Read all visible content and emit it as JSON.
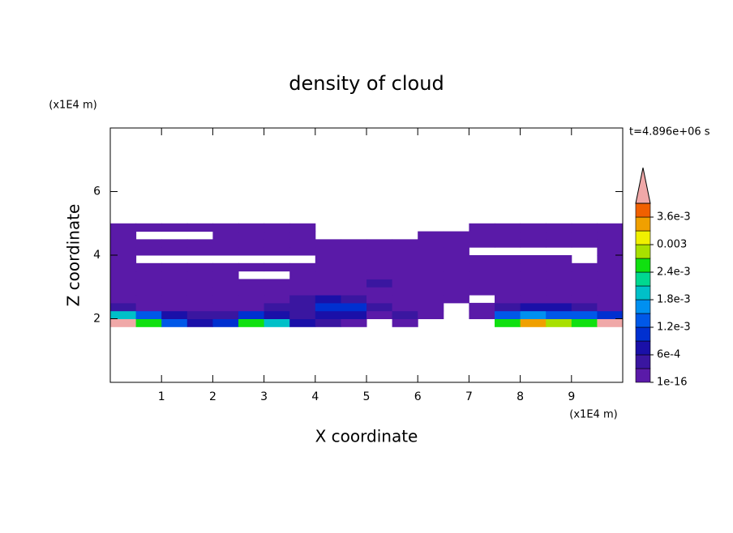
{
  "chart_data": {
    "type": "contour",
    "title": "density of cloud",
    "xlabel": "X coordinate",
    "ylabel": "Z coordinate",
    "xunit": "(x1E4 m)",
    "yunit": "(x1E4 m)",
    "time_label": "t=4.896e+06 s",
    "xlim": [
      0,
      10
    ],
    "ylim": [
      0,
      8
    ],
    "xticks": [
      1,
      2,
      3,
      4,
      5,
      6,
      7,
      8,
      9
    ],
    "yticks": [
      2,
      4,
      6
    ],
    "x": [
      0.25,
      0.75,
      1.25,
      1.75,
      2.25,
      2.75,
      3.25,
      3.75,
      4.25,
      4.75,
      5.25,
      5.75,
      6.25,
      6.75,
      7.25,
      7.75,
      8.25,
      8.75,
      9.25,
      9.75
    ],
    "y": [
      1.875,
      2.125,
      2.375,
      2.625,
      2.875,
      3.125,
      3.375,
      3.625,
      3.875,
      4.125,
      4.375,
      4.625,
      4.875
    ],
    "z": [
      [
        0.0042,
        0.0025,
        0.0012,
        0.0008,
        0.0009,
        0.0024,
        0.0018,
        0.0006,
        0.0003,
        0.0001,
        null,
        0.0002,
        null,
        null,
        null,
        0.0026,
        0.0035,
        0.0028,
        0.0024,
        0.0041
      ],
      [
        0.0019,
        0.0014,
        0.0007,
        0.0004,
        0.0005,
        0.001,
        0.0007,
        0.0004,
        0.0008,
        0.0006,
        0.0002,
        0.0004,
        0.0001,
        null,
        0.0002,
        0.0012,
        0.0016,
        0.0014,
        0.0012,
        0.001
      ],
      [
        0.0003,
        0.0002,
        0.0001,
        0.0001,
        0.0002,
        0.0002,
        0.0003,
        0.0005,
        0.0009,
        0.001,
        0.0004,
        0.0002,
        0.0001,
        null,
        0.0001,
        0.0005,
        0.0007,
        0.0006,
        0.0004,
        0.0002
      ],
      [
        0.0001,
        0.0001,
        5e-05,
        5e-05,
        0.0001,
        0.0001,
        0.0002,
        0.0003,
        0.0006,
        0.0004,
        0.0002,
        0.0001,
        0.0001,
        5e-05,
        null,
        0.0001,
        0.0002,
        0.0002,
        0.0001,
        0.0001
      ],
      [
        0.0002,
        0.0001,
        0.0001,
        0.0001,
        0.0001,
        0.0001,
        0.0001,
        0.0002,
        0.0002,
        0.0002,
        0.0001,
        0.0001,
        0.0001,
        0.0001,
        0.0001,
        0.0001,
        0.0001,
        0.0001,
        0.0001,
        0.0001
      ],
      [
        0.0001,
        0.0001,
        0.0002,
        0.0001,
        0.0001,
        0.0001,
        0.0001,
        0.0001,
        0.0002,
        0.0001,
        0.0003,
        0.0001,
        0.0001,
        0.0001,
        0.0001,
        0.0001,
        0.0001,
        0.0001,
        0.0001,
        0.0001
      ],
      [
        0.0001,
        0.0001,
        0.0001,
        0.0001,
        0.0001,
        null,
        null,
        0.0001,
        0.0001,
        0.0001,
        0.0001,
        0.0001,
        0.0001,
        0.0001,
        0.0001,
        0.0001,
        0.0001,
        0.0001,
        0.0001,
        0.0001
      ],
      [
        0.0001,
        0.0001,
        0.0001,
        0.0001,
        0.0001,
        0.0001,
        0.0001,
        0.0001,
        0.0001,
        0.0001,
        0.0001,
        0.0001,
        0.0001,
        0.0001,
        0.0001,
        0.0001,
        0.0001,
        0.0001,
        0.0001,
        0.0001
      ],
      [
        0.0001,
        null,
        null,
        null,
        null,
        null,
        null,
        null,
        0.0001,
        0.0001,
        0.0001,
        0.0001,
        0.0001,
        0.0001,
        0.0001,
        0.0001,
        0.0001,
        0.0001,
        null,
        0.0001
      ],
      [
        0.0001,
        0.0001,
        0.0001,
        0.0001,
        0.0001,
        0.0001,
        0.0001,
        0.0001,
        0.0001,
        0.0001,
        0.0001,
        0.0001,
        0.0001,
        0.0001,
        null,
        null,
        null,
        null,
        null,
        0.0001
      ],
      [
        0.0001,
        0.0001,
        0.0001,
        0.0001,
        0.0001,
        0.0001,
        0.0001,
        0.0001,
        0.0001,
        0.0001,
        0.0001,
        0.0001,
        0.0001,
        0.0001,
        0.0001,
        0.0001,
        0.0001,
        0.0001,
        0.0001,
        0.0001
      ],
      [
        0.0001,
        null,
        null,
        null,
        0.0001,
        0.0001,
        0.0001,
        0.0001,
        null,
        null,
        null,
        null,
        0.0001,
        0.0001,
        0.0001,
        0.0001,
        0.0001,
        0.0001,
        0.0001,
        0.0001
      ],
      [
        0.0001,
        0.0001,
        0.0001,
        0.0001,
        0.0001,
        0.0001,
        0.0001,
        0.0001,
        null,
        null,
        null,
        null,
        null,
        null,
        0.0001,
        0.0001,
        0.0001,
        0.0001,
        0.0001,
        0.0001
      ]
    ],
    "colorbar": {
      "levels": [
        1e-16,
        0.0003,
        0.0006,
        0.0009,
        0.0012,
        0.0015,
        0.0018,
        0.0021,
        0.0024,
        0.0027,
        0.003,
        0.0033,
        0.0036,
        0.0039
      ],
      "colors": [
        "#5a1aa8",
        "#3a16a0",
        "#1a10a8",
        "#0030d0",
        "#0058e8",
        "#0090f0",
        "#00c0c8",
        "#00d890",
        "#10e010",
        "#a8e000",
        "#f0f000",
        "#f0a000",
        "#f06000",
        "#f00000"
      ],
      "over_color": "#f0a8a8",
      "ticks": [
        {
          "value": 1e-16,
          "label": "1e-16"
        },
        {
          "value": 0.0006,
          "label": "6e-4"
        },
        {
          "value": 0.0012,
          "label": "1.2e-3"
        },
        {
          "value": 0.0018,
          "label": "1.8e-3"
        },
        {
          "value": 0.0024,
          "label": "2.4e-3"
        },
        0.003,
        {
          "value": 0.0036,
          "label": "3.6e-3"
        }
      ]
    }
  }
}
